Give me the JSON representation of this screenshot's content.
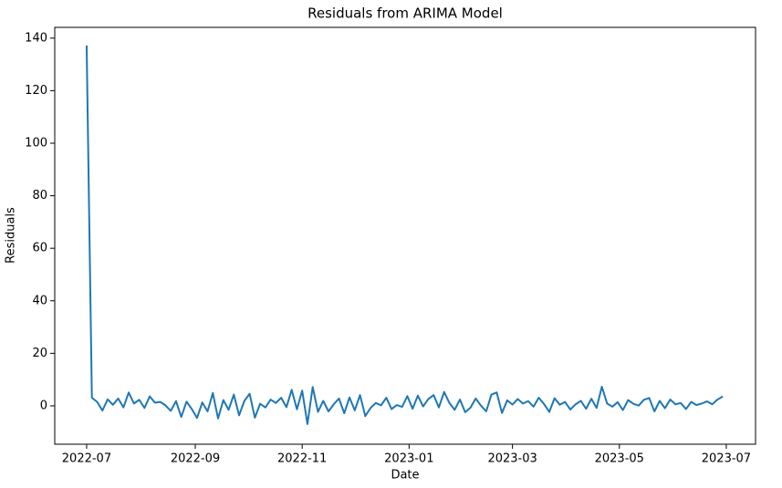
{
  "chart_data": {
    "type": "line",
    "title": "Residuals from ARIMA Model",
    "x_label": "Date",
    "y_label": "Residuals",
    "x": [
      0,
      3,
      6,
      9,
      12,
      15,
      18,
      21,
      24,
      27,
      30,
      33,
      36,
      39,
      42,
      45,
      48,
      51,
      54,
      57,
      60,
      63,
      66,
      69,
      72,
      75,
      78,
      81,
      84,
      87,
      90,
      93,
      96,
      99,
      102,
      105,
      108,
      111,
      114,
      117,
      120,
      123,
      126,
      129,
      132,
      135,
      138,
      141,
      144,
      147,
      150,
      153,
      156,
      159,
      162,
      165,
      168,
      171,
      174,
      177,
      180,
      183,
      186,
      189,
      192,
      195,
      198,
      201,
      204,
      207,
      210,
      213,
      216,
      219,
      222,
      225,
      228,
      231,
      234,
      237,
      240,
      243,
      246,
      249,
      252,
      255,
      258,
      261,
      264,
      267,
      270,
      273,
      276,
      279,
      282,
      285,
      288,
      291,
      294,
      297,
      300,
      303,
      306,
      309,
      312,
      315,
      318,
      321,
      324,
      327,
      330,
      333,
      336,
      339,
      342,
      345,
      348,
      351,
      354,
      357,
      360,
      363
    ],
    "values": [
      137.2,
      3.1,
      1.5,
      -1.8,
      2.5,
      0.4,
      2.8,
      -0.6,
      5.1,
      0.9,
      2.3,
      -0.8,
      3.6,
      1.2,
      1.5,
      0.2,
      -1.9,
      1.8,
      -4.2,
      1.6,
      -1.2,
      -4.6,
      1.3,
      -2.1,
      4.9,
      -4.8,
      2.2,
      -1.5,
      4.3,
      -3.6,
      1.9,
      4.6,
      -4.5,
      0.8,
      -0.6,
      2.4,
      1.1,
      3.1,
      -0.5,
      6.1,
      -1.3,
      5.8,
      -6.9,
      7.2,
      -2.3,
      1.9,
      -2.1,
      0.6,
      2.8,
      -2.8,
      3.2,
      -1.7,
      4.1,
      -3.9,
      -0.8,
      1.1,
      0.2,
      3.1,
      -1.2,
      0.3,
      -0.4,
      3.7,
      -1.1,
      3.9,
      -0.2,
      2.6,
      4.1,
      -0.6,
      5.3,
      1.1,
      -1.5,
      2.4,
      -2.4,
      -0.7,
      2.8,
      0.1,
      -2.1,
      4.3,
      5.1,
      -2.7,
      2.1,
      0.5,
      2.6,
      0.9,
      1.8,
      -0.3,
      3.1,
      0.7,
      -2.3,
      2.9,
      0.4,
      1.5,
      -1.4,
      0.6,
      1.9,
      -1.1,
      2.7,
      -0.8,
      7.3,
      0.9,
      -0.3,
      1.4,
      -1.6,
      2.2,
      0.8,
      0.1,
      2.3,
      3.0,
      -2.1,
      1.9,
      -0.9,
      2.4,
      0.6,
      1.1,
      -1.2,
      1.5,
      0.3,
      0.9,
      1.7,
      0.6,
      2.4,
      3.6
    ],
    "color": "#1f77b4",
    "xlim": [
      -18.2,
      381.7
    ],
    "xticks": [
      {
        "value": 0,
        "label": "2022-07"
      },
      {
        "value": 62,
        "label": "2022-09"
      },
      {
        "value": 123,
        "label": "2022-11"
      },
      {
        "value": 184,
        "label": "2023-01"
      },
      {
        "value": 243,
        "label": "2023-03"
      },
      {
        "value": 304,
        "label": "2023-05"
      },
      {
        "value": 365,
        "label": "2023-07"
      }
    ],
    "ylim": [
      -14.6,
      144.1
    ],
    "yticks": [
      0,
      20,
      40,
      60,
      80,
      100,
      120,
      140
    ]
  }
}
